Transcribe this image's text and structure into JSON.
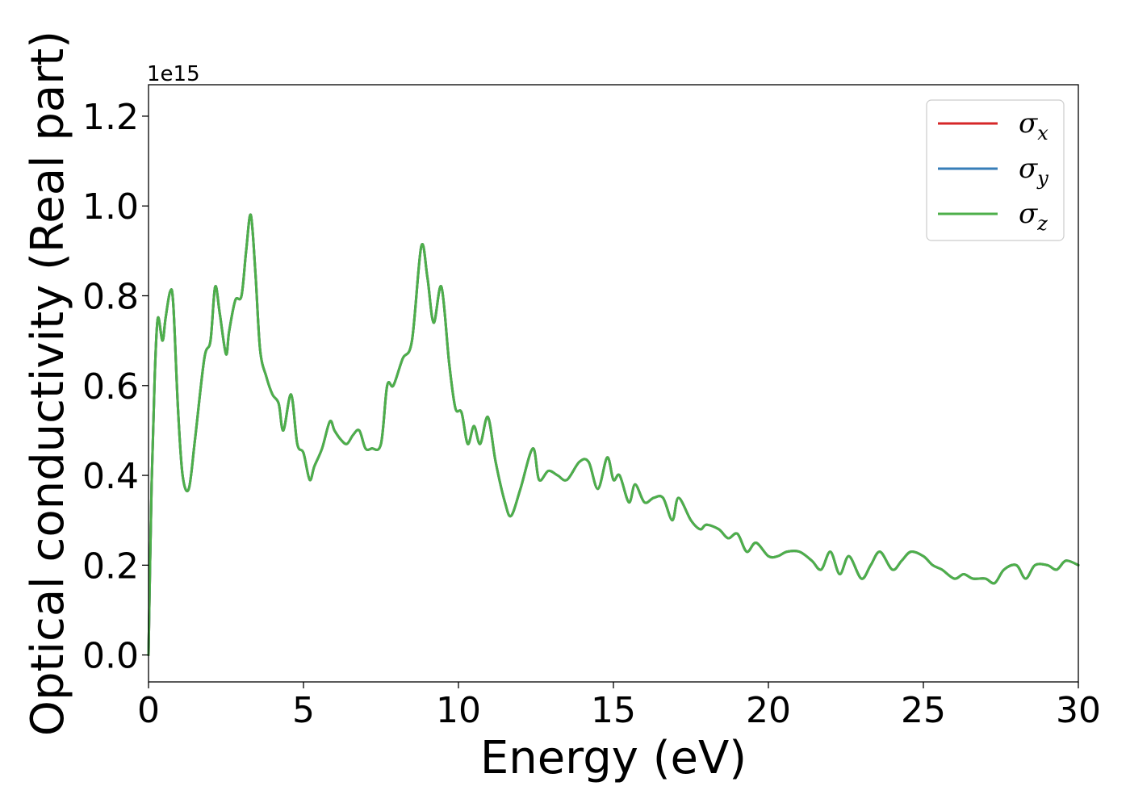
{
  "chart_data": {
    "type": "line",
    "title": "",
    "xlabel": "Energy (eV)",
    "ylabel": "Optical conductivity (Real part)",
    "y_offset_label": "1e15",
    "xlim": [
      0,
      30
    ],
    "ylim": [
      -0.06,
      1.27
    ],
    "xticks": [
      0,
      5,
      10,
      15,
      20,
      25,
      30
    ],
    "xtick_labels": [
      "0",
      "5",
      "10",
      "15",
      "20",
      "25",
      "30"
    ],
    "yticks": [
      0.0,
      0.2,
      0.4,
      0.6,
      0.8,
      1.0,
      1.2
    ],
    "ytick_labels": [
      "0.0",
      "0.2",
      "0.4",
      "0.6",
      "0.8",
      "1.0",
      "1.2"
    ],
    "grid": false,
    "legend_position": "top-right",
    "legend": [
      {
        "symbol": "σ",
        "sub": "x",
        "color": "#d62728"
      },
      {
        "symbol": "σ",
        "sub": "y",
        "color": "#377eb8"
      },
      {
        "symbol": "σ",
        "sub": "z",
        "color": "#4daf4a"
      }
    ],
    "x": [
      0,
      0.1,
      0.2,
      0.3,
      0.45,
      0.55,
      0.7,
      0.8,
      0.95,
      1.1,
      1.3,
      1.5,
      1.8,
      2.0,
      2.15,
      2.3,
      2.5,
      2.6,
      2.8,
      3.0,
      3.15,
      3.3,
      3.45,
      3.6,
      3.8,
      4.0,
      4.2,
      4.35,
      4.6,
      4.8,
      5.0,
      5.2,
      5.35,
      5.6,
      5.85,
      6.0,
      6.2,
      6.4,
      6.6,
      6.8,
      7.0,
      7.2,
      7.5,
      7.7,
      7.9,
      8.2,
      8.5,
      8.8,
      9.0,
      9.2,
      9.45,
      9.7,
      9.9,
      10.1,
      10.3,
      10.5,
      10.7,
      10.95,
      11.2,
      11.5,
      11.7,
      12.0,
      12.4,
      12.6,
      12.9,
      13.2,
      13.5,
      13.9,
      14.2,
      14.5,
      14.8,
      15.0,
      15.2,
      15.5,
      15.7,
      16.0,
      16.3,
      16.6,
      16.9,
      17.1,
      17.5,
      17.8,
      18.0,
      18.4,
      18.7,
      19.0,
      19.3,
      19.6,
      20.0,
      20.3,
      20.6,
      21.0,
      21.4,
      21.7,
      22.0,
      22.3,
      22.6,
      23.0,
      23.3,
      23.6,
      24.0,
      24.3,
      24.6,
      25.0,
      25.3,
      25.6,
      26.0,
      26.3,
      26.6,
      27.0,
      27.3,
      27.6,
      28.0,
      28.3,
      28.6,
      29.0,
      29.3,
      29.6,
      30.0
    ],
    "series": [
      {
        "name": "σx",
        "color": "#d62728",
        "values": [
          0.0,
          0.38,
          0.62,
          0.75,
          0.7,
          0.75,
          0.81,
          0.78,
          0.55,
          0.4,
          0.37,
          0.48,
          0.66,
          0.7,
          0.82,
          0.76,
          0.67,
          0.72,
          0.79,
          0.8,
          0.9,
          0.98,
          0.85,
          0.68,
          0.62,
          0.58,
          0.56,
          0.5,
          0.58,
          0.47,
          0.45,
          0.39,
          0.42,
          0.46,
          0.52,
          0.5,
          0.48,
          0.47,
          0.49,
          0.5,
          0.46,
          0.46,
          0.47,
          0.6,
          0.6,
          0.66,
          0.7,
          0.91,
          0.84,
          0.74,
          0.82,
          0.65,
          0.55,
          0.54,
          0.47,
          0.51,
          0.47,
          0.53,
          0.43,
          0.34,
          0.31,
          0.37,
          0.46,
          0.39,
          0.41,
          0.4,
          0.39,
          0.43,
          0.43,
          0.37,
          0.44,
          0.39,
          0.4,
          0.34,
          0.38,
          0.34,
          0.35,
          0.35,
          0.3,
          0.35,
          0.3,
          0.28,
          0.29,
          0.28,
          0.26,
          0.27,
          0.23,
          0.25,
          0.22,
          0.22,
          0.23,
          0.23,
          0.21,
          0.19,
          0.23,
          0.18,
          0.22,
          0.17,
          0.2,
          0.23,
          0.19,
          0.21,
          0.23,
          0.22,
          0.2,
          0.19,
          0.17,
          0.18,
          0.17,
          0.17,
          0.16,
          0.19,
          0.2,
          0.17,
          0.2,
          0.2,
          0.19,
          0.21,
          0.2
        ]
      },
      {
        "name": "σy",
        "color": "#377eb8",
        "values": [
          0.0,
          0.38,
          0.62,
          0.75,
          0.7,
          0.75,
          0.81,
          0.78,
          0.55,
          0.4,
          0.37,
          0.48,
          0.66,
          0.7,
          0.82,
          0.76,
          0.67,
          0.72,
          0.79,
          0.8,
          0.9,
          0.98,
          0.85,
          0.68,
          0.62,
          0.58,
          0.56,
          0.5,
          0.58,
          0.47,
          0.45,
          0.39,
          0.42,
          0.46,
          0.52,
          0.5,
          0.48,
          0.47,
          0.49,
          0.5,
          0.46,
          0.46,
          0.47,
          0.6,
          0.6,
          0.66,
          0.7,
          0.91,
          0.84,
          0.74,
          0.82,
          0.65,
          0.55,
          0.54,
          0.47,
          0.51,
          0.47,
          0.53,
          0.43,
          0.34,
          0.31,
          0.37,
          0.46,
          0.39,
          0.41,
          0.4,
          0.39,
          0.43,
          0.43,
          0.37,
          0.44,
          0.39,
          0.4,
          0.34,
          0.38,
          0.34,
          0.35,
          0.35,
          0.3,
          0.35,
          0.3,
          0.28,
          0.29,
          0.28,
          0.26,
          0.27,
          0.23,
          0.25,
          0.22,
          0.22,
          0.23,
          0.23,
          0.21,
          0.19,
          0.23,
          0.18,
          0.22,
          0.17,
          0.2,
          0.23,
          0.19,
          0.21,
          0.23,
          0.22,
          0.2,
          0.19,
          0.17,
          0.18,
          0.17,
          0.17,
          0.16,
          0.19,
          0.2,
          0.17,
          0.2,
          0.2,
          0.19,
          0.21,
          0.2
        ]
      },
      {
        "name": "σz",
        "color": "#4daf4a",
        "values": [
          0.0,
          0.38,
          0.62,
          0.75,
          0.7,
          0.75,
          0.81,
          0.78,
          0.55,
          0.4,
          0.37,
          0.48,
          0.66,
          0.7,
          0.82,
          0.76,
          0.67,
          0.72,
          0.79,
          0.8,
          0.9,
          0.98,
          0.85,
          0.68,
          0.62,
          0.58,
          0.56,
          0.5,
          0.58,
          0.47,
          0.45,
          0.39,
          0.42,
          0.46,
          0.52,
          0.5,
          0.48,
          0.47,
          0.49,
          0.5,
          0.46,
          0.46,
          0.47,
          0.6,
          0.6,
          0.66,
          0.7,
          0.91,
          0.84,
          0.74,
          0.82,
          0.65,
          0.55,
          0.54,
          0.47,
          0.51,
          0.47,
          0.53,
          0.43,
          0.34,
          0.31,
          0.37,
          0.46,
          0.39,
          0.41,
          0.4,
          0.39,
          0.43,
          0.43,
          0.37,
          0.44,
          0.39,
          0.4,
          0.34,
          0.38,
          0.34,
          0.35,
          0.35,
          0.3,
          0.35,
          0.3,
          0.28,
          0.29,
          0.28,
          0.26,
          0.27,
          0.23,
          0.25,
          0.22,
          0.22,
          0.23,
          0.23,
          0.21,
          0.19,
          0.23,
          0.18,
          0.22,
          0.17,
          0.2,
          0.23,
          0.19,
          0.21,
          0.23,
          0.22,
          0.2,
          0.19,
          0.17,
          0.18,
          0.17,
          0.17,
          0.16,
          0.19,
          0.2,
          0.17,
          0.2,
          0.2,
          0.19,
          0.21,
          0.2
        ]
      }
    ]
  }
}
